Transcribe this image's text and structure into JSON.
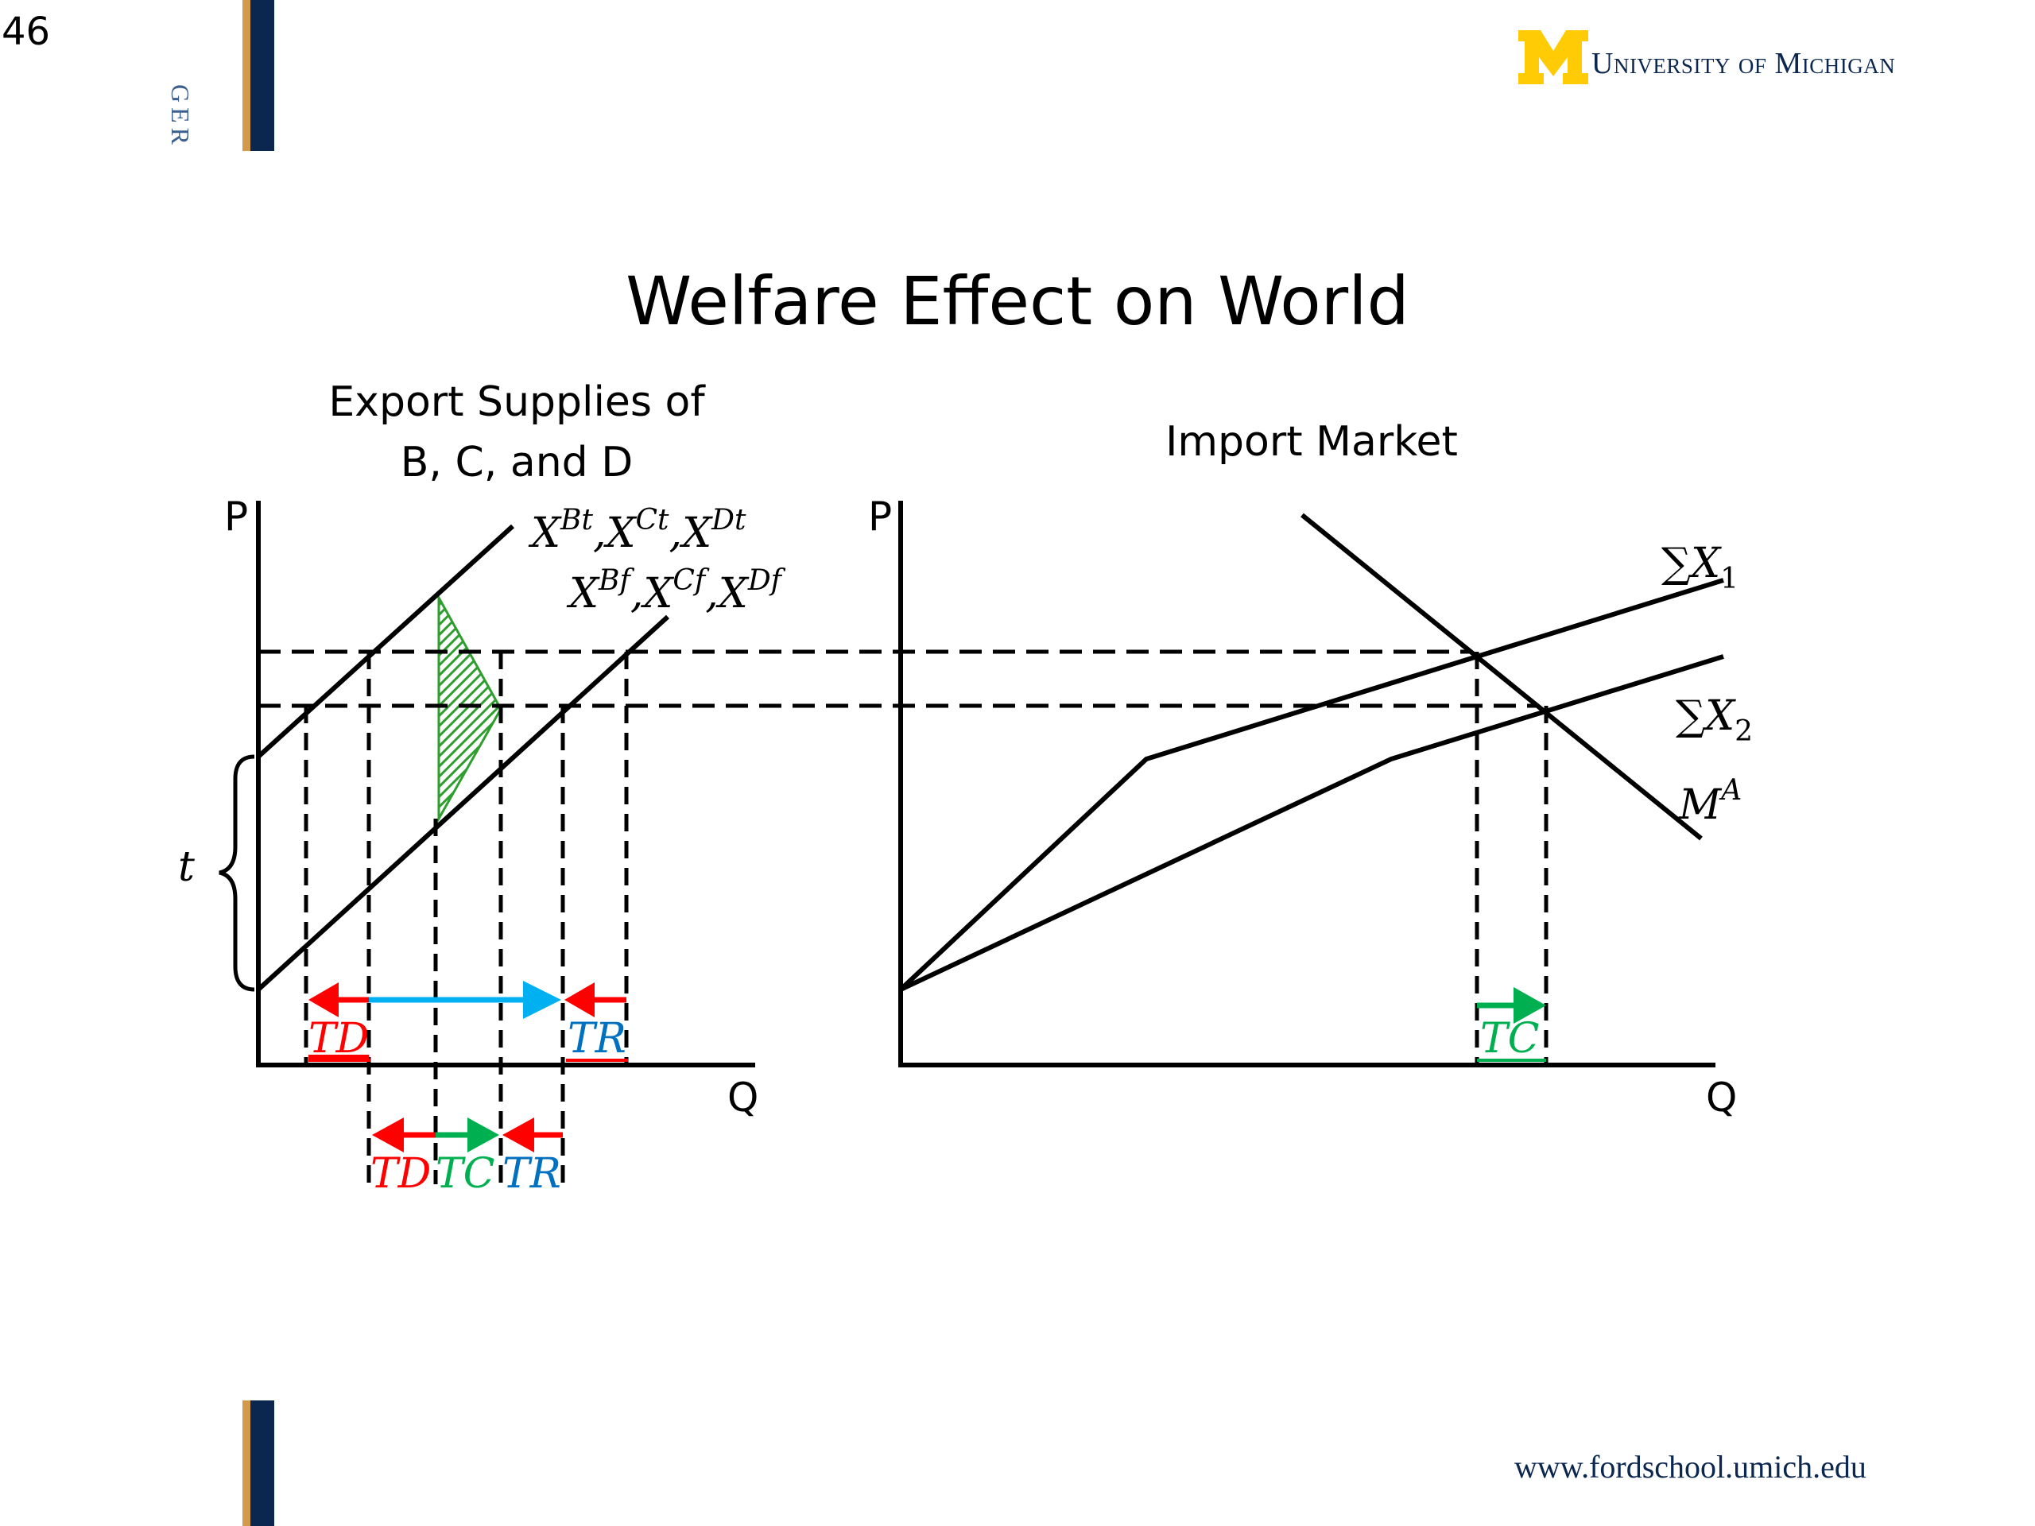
{
  "slide": {
    "page_number": "46",
    "title": "Welfare Effect on World",
    "side_text": "GER",
    "logo_text": "University of Michigan",
    "footer_url": "www.fordschool.umich.edu"
  },
  "left_panel": {
    "title_line1": "Export Supplies of",
    "title_line2": "B, C, and D",
    "y_axis": "P",
    "x_axis": "Q",
    "curve_tariff_label": [
      "X",
      "Bt",
      ",",
      "X",
      "Ct",
      ",",
      "X",
      "Dt"
    ],
    "curve_free_label": [
      "X",
      "Bf",
      ",",
      "X",
      "Cf",
      ",",
      "X",
      "Df"
    ],
    "tariff_symbol": "t",
    "arrow_labels_upper": [
      "TD",
      "TR"
    ],
    "arrow_labels_lower": [
      "TD",
      "TC",
      "TR"
    ]
  },
  "right_panel": {
    "title": "Import Market",
    "y_axis": "P",
    "x_axis": "Q",
    "curve_1_label": [
      "∑X",
      "1"
    ],
    "curve_2_label": [
      "∑X",
      "2"
    ],
    "demand_label": [
      "M",
      "A"
    ],
    "arrow_label": "TC"
  },
  "colors": {
    "td": "#ff0000",
    "tr": "#0070c0",
    "tc": "#00b050",
    "cyan": "#00b0f0",
    "hatch": "#2e9e2e",
    "navy": "#0b2750",
    "gold": "#d39a4c",
    "maize": "#ffcb05"
  }
}
